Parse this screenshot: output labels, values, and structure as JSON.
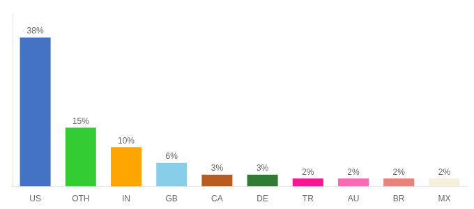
{
  "chart_data": {
    "type": "bar",
    "categories": [
      "US",
      "OTH",
      "IN",
      "GB",
      "CA",
      "DE",
      "TR",
      "AU",
      "BR",
      "MX"
    ],
    "values": [
      38,
      15,
      10,
      6,
      3,
      3,
      2,
      2,
      2,
      2
    ],
    "value_labels": [
      "38%",
      "15%",
      "10%",
      "6%",
      "3%",
      "3%",
      "2%",
      "2%",
      "2%",
      "2%"
    ],
    "colors": [
      "#4472C4",
      "#33CC33",
      "#FFA500",
      "#87CEEB",
      "#B85C20",
      "#2E7D32",
      "#FF1493",
      "#FF69B4",
      "#E8837A",
      "#F5F0DC"
    ],
    "data_labels": true,
    "ylim": [
      0,
      44
    ],
    "grid": false,
    "tick_labels": "x"
  }
}
